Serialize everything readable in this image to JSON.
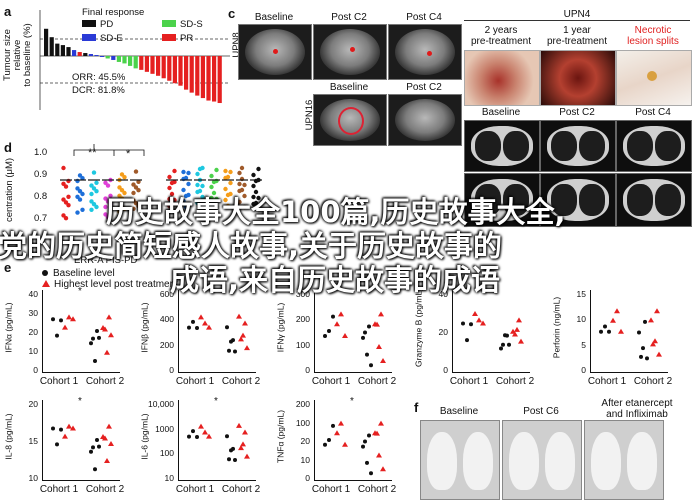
{
  "panel_a": {
    "letter": "a",
    "ylabel_lines": [
      "Tumour size relative",
      "to baseline (%)"
    ],
    "yticks": [
      "60",
      "40",
      "20",
      "0",
      "-20",
      "-40",
      "-60",
      "-80",
      "-100"
    ],
    "legend_title": "Final response",
    "legend": [
      {
        "label": "PD",
        "color": "#111111"
      },
      {
        "label": "SD-S",
        "color": "#4bd24b"
      },
      {
        "label": "SD-E",
        "color": "#2a3ad6"
      },
      {
        "label": "PR",
        "color": "#e52020"
      }
    ],
    "orr": "ORR: 45.5%",
    "dcr": "DCR: 81.8%"
  },
  "panel_c": {
    "letter": "c",
    "row1_label": "UPN8",
    "row2_label": "UPN16",
    "row1_titles": [
      "Baseline",
      "Post C2",
      "Post C4"
    ],
    "row2_titles": [
      "Baseline",
      "Post C2"
    ]
  },
  "panel_upn4": {
    "title": "UPN4",
    "photo_titles": [
      "2 years\npre-treatment",
      "1 year\npre-treatment",
      "Necrotic\nlesion splits"
    ],
    "ct_titles": [
      "Baseline",
      "Post C2",
      "Post C4"
    ]
  },
  "panel_d": {
    "letter": "d",
    "ylabel": "centration (μM)",
    "yticks": [
      "1.0",
      "0.9",
      "0.8",
      "0.7"
    ],
    "sig1": "**",
    "sig2": "*",
    "bottom_text": "ERR-A  PIS-PD"
  },
  "panel_e": {
    "letter": "e",
    "legend": [
      {
        "label": "Baseline level",
        "shape": "circle"
      },
      {
        "label": "Highest  level post treatment",
        "shape": "triangle"
      }
    ],
    "plots_row1": [
      {
        "ylabel": "IFNα (pg/mL)",
        "yticks": [
          "40",
          "30",
          "20",
          "10",
          "0"
        ],
        "sig": "*"
      },
      {
        "ylabel": "IFNβ (pg/mL)",
        "yticks": [
          "600",
          "400",
          "200",
          "0"
        ],
        "sig": ""
      },
      {
        "ylabel": "IFNγ (pg/mL)",
        "yticks": [
          "300",
          "200",
          "100",
          "0"
        ],
        "sig": ""
      },
      {
        "ylabel": "Granzyme B (pg/mL)",
        "yticks": [
          "40",
          "20",
          "0"
        ],
        "sig": ""
      },
      {
        "ylabel": "Perforin (ng/mL)",
        "yticks": [
          "15",
          "10",
          "5",
          "0"
        ],
        "sig": ""
      }
    ],
    "plots_row2": [
      {
        "ylabel": "IL-8 (pg/mL)",
        "yticks": [
          "20",
          "15",
          "10"
        ],
        "sig": "*"
      },
      {
        "ylabel": "IL-6 (pg/mL)",
        "yticks": [
          "10,000",
          "1000",
          "100",
          "10"
        ],
        "sig": "*"
      },
      {
        "ylabel": "TNFα (pg/mL)",
        "yticks": [
          "200",
          "100",
          "20",
          "10",
          "0"
        ],
        "sig": "*"
      }
    ],
    "cohorts": [
      "Cohort 1",
      "Cohort 2"
    ]
  },
  "panel_f": {
    "letter": "f",
    "titles": [
      "Baseline",
      "Post C6",
      "After etanercept\nand Infliximab"
    ]
  },
  "overlay_text": {
    "line1": "历史故事大全100篇,历史故事大全,",
    "line2": "党的历史简短感人故事,关于历史故事的",
    "line3": "成语,来自历史故事的成语"
  }
}
